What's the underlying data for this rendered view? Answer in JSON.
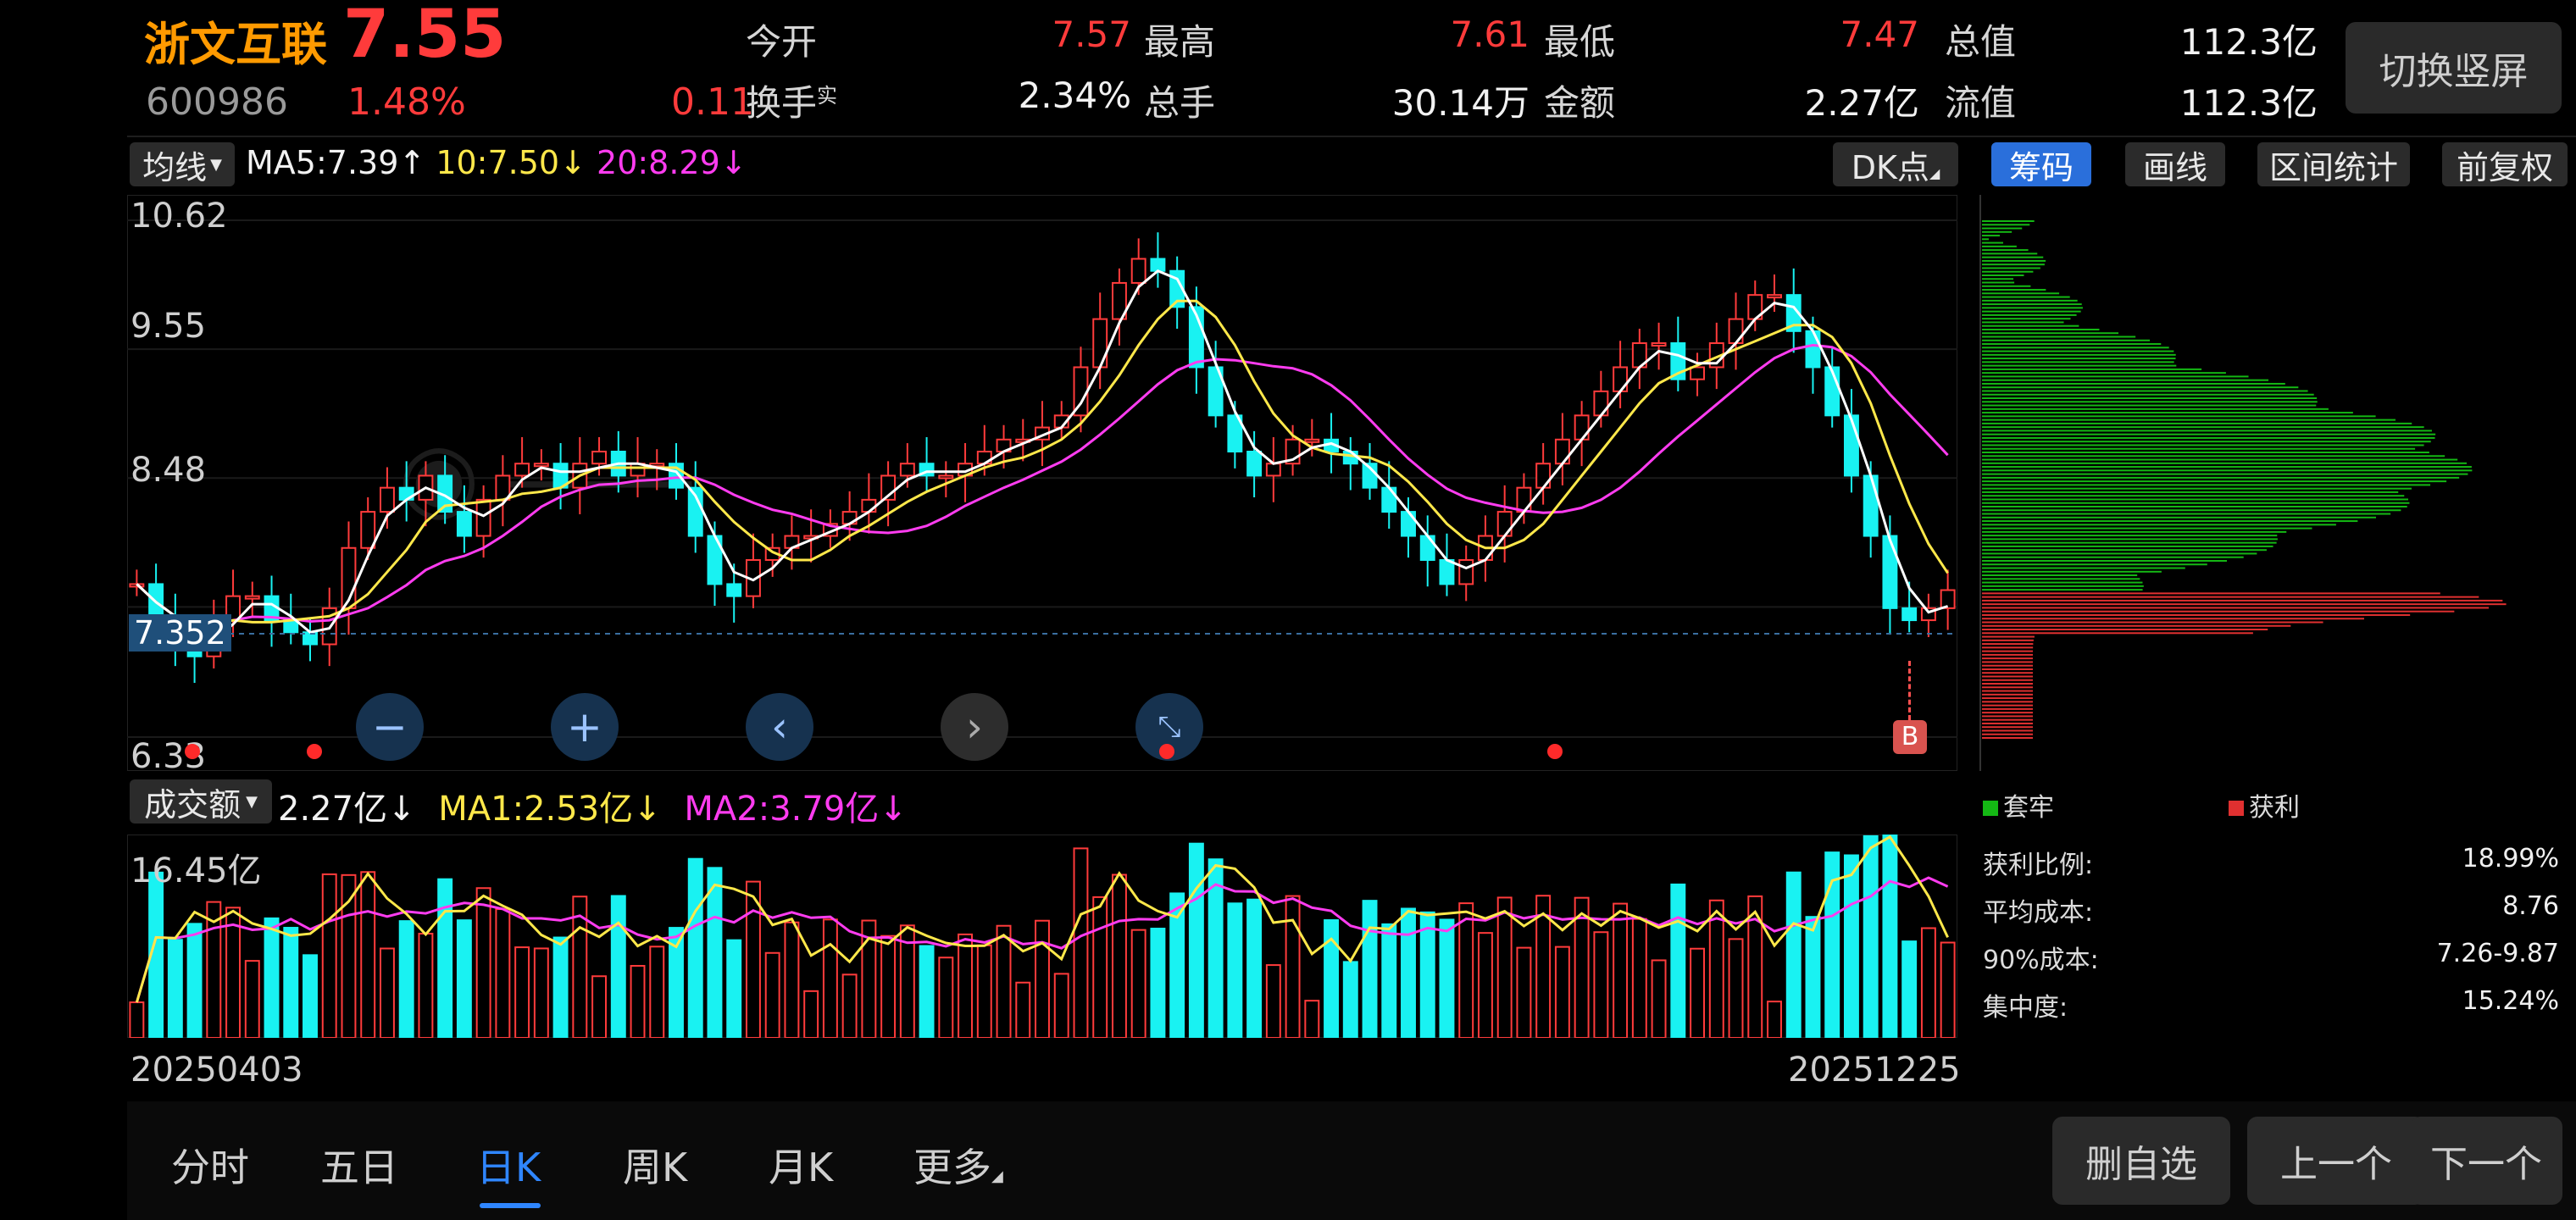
{
  "stock": {
    "name": "浙文互联",
    "code": "600986",
    "price": "7.55",
    "change_pct": "1.48%",
    "change": "0.11"
  },
  "quote": {
    "open_label": "今开",
    "open_value": "7.57",
    "high_label": "最高",
    "high_value": "7.61",
    "low_label": "最低",
    "low_value": "7.47",
    "cap_label": "总值",
    "cap_value": "112.3亿",
    "turnover_label": "换手",
    "turnover_sup": "实",
    "turnover_value": "2.34%",
    "volume_label": "总手",
    "volume_value": "30.14万",
    "amount_label": "金额",
    "amount_value": "2.27亿",
    "float_label": "流值",
    "float_value": "112.3亿"
  },
  "switch_button": "切换竖屏",
  "ma_bar": {
    "selector": "均线",
    "ma5": "MA5:7.39",
    "ma10": "10:7.50",
    "ma20": "20:8.29",
    "dk_button": "DK点",
    "tools": [
      "筹码",
      "画线",
      "区间统计",
      "前复权"
    ]
  },
  "price_axis": {
    "top": "10.62",
    "second": "9.55",
    "third": "8.48",
    "current": "7.352",
    "bottom": "6.33"
  },
  "volume_bar": {
    "selector": "成交额",
    "amount": "2.27亿",
    "ma1": "MA1:2.53亿",
    "ma2": "MA2:3.79亿",
    "axis_top": "16.45亿"
  },
  "dates": {
    "start": "20250403",
    "end": "20251225"
  },
  "marker_b": "B",
  "legend": {
    "trapped": "套牢",
    "profit": "获利"
  },
  "stats": [
    {
      "label": "获利比例:",
      "value": "18.99%"
    },
    {
      "label": "平均成本:",
      "value": "8.76"
    },
    {
      "label": "90%成本:",
      "value": "7.26-9.87"
    },
    {
      "label": "集中度:",
      "value": "15.24%"
    }
  ],
  "tabs": [
    "分时",
    "五日",
    "日K",
    "周K",
    "月K",
    "更多"
  ],
  "active_tab": "日K",
  "bottom_buttons": [
    "删自选",
    "上一个",
    "下一个"
  ],
  "colors": {
    "up": "#ff3b3b",
    "down": "#19f2f2",
    "ma5": "#ffffff",
    "ma10": "#ffe84a",
    "ma20": "#ff3cf0",
    "accent": "#2a6fdb"
  },
  "chart_data": {
    "type": "candlestick",
    "y_range": [
      6.33,
      10.62
    ],
    "ma_lines": [
      "MA5",
      "MA10",
      "MA20"
    ],
    "ma5_last": 7.39,
    "ma10_last": 7.5,
    "ma20_last": 8.29,
    "close_series": [
      7.6,
      7.3,
      7.1,
      7.0,
      7.3,
      7.5,
      7.5,
      7.3,
      7.2,
      7.1,
      7.4,
      7.9,
      8.2,
      8.4,
      8.3,
      8.5,
      8.2,
      8.0,
      8.3,
      8.5,
      8.6,
      8.6,
      8.4,
      8.6,
      8.7,
      8.5,
      8.6,
      8.6,
      8.4,
      8.0,
      7.6,
      7.5,
      7.8,
      7.9,
      8.0,
      8.0,
      8.1,
      8.2,
      8.3,
      8.5,
      8.6,
      8.5,
      8.5,
      8.6,
      8.7,
      8.8,
      8.8,
      8.9,
      9.0,
      9.4,
      9.8,
      10.1,
      10.3,
      10.2,
      9.9,
      9.4,
      9.0,
      8.7,
      8.5,
      8.6,
      8.8,
      8.8,
      8.7,
      8.6,
      8.4,
      8.2,
      8.0,
      7.8,
      7.6,
      7.8,
      8.0,
      8.2,
      8.4,
      8.6,
      8.8,
      9.0,
      9.2,
      9.4,
      9.6,
      9.6,
      9.3,
      9.4,
      9.6,
      9.8,
      10.0,
      10.0,
      9.7,
      9.4,
      9.0,
      8.5,
      8.0,
      7.4,
      7.3,
      7.4,
      7.55
    ],
    "volume_unit": "亿",
    "volume_axis_max": 16.45,
    "volume_last": 2.27,
    "vol_ma1": 2.53,
    "vol_ma2": 3.79
  },
  "chip_distribution": {
    "profit_ratio": 18.99,
    "avg_cost": 8.76,
    "cost_90": "7.26-9.87",
    "concentration": 15.24
  }
}
